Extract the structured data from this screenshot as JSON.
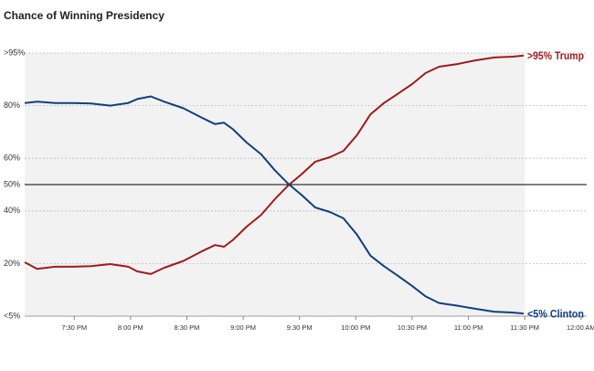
{
  "chart_data": {
    "type": "line",
    "title": "Chance of Winning Presidency",
    "xlim": [
      19.06,
      24.05
    ],
    "ylim": [
      0,
      100
    ],
    "xticks": [
      {
        "value": 19.5,
        "label": "7:30 PM"
      },
      {
        "value": 20,
        "label": "8:00 PM"
      },
      {
        "value": 20.5,
        "label": "8:30 PM"
      },
      {
        "value": 21,
        "label": "9:00 PM"
      },
      {
        "value": 21.5,
        "label": "9:30 PM"
      },
      {
        "value": 22,
        "label": "10:00 PM"
      },
      {
        "value": 22.5,
        "label": "10:30 PM"
      },
      {
        "value": 23,
        "label": "11:00 PM"
      },
      {
        "value": 23.5,
        "label": "11:30 PM"
      },
      {
        "value": 24,
        "label": "12:00 AM"
      }
    ],
    "yticks": [
      {
        "value": 0,
        "label": "<5%"
      },
      {
        "value": 20,
        "label": "20%"
      },
      {
        "value": 40,
        "label": "40%"
      },
      {
        "value": 50,
        "label": "50%"
      },
      {
        "value": 60,
        "label": "60%"
      },
      {
        "value": 80,
        "label": "80%"
      },
      {
        "value": 100,
        "label": ">95%"
      }
    ],
    "grid": true,
    "reference_line": 50,
    "shaded_xlim": [
      19.06,
      23.5
    ],
    "x": [
      19.06,
      19.17,
      19.33,
      19.49,
      19.65,
      19.82,
      19.98,
      20.06,
      20.18,
      20.3,
      20.47,
      20.63,
      20.75,
      20.83,
      20.91,
      21.03,
      21.16,
      21.28,
      21.4,
      21.52,
      21.64,
      21.77,
      21.89,
      22.01,
      22.13,
      22.25,
      22.37,
      22.5,
      22.62,
      22.74,
      22.9,
      23.06,
      23.23,
      23.39,
      23.49
    ],
    "series": [
      {
        "name": ">95% Trump",
        "color": "#9e1c1c",
        "values": [
          20.5,
          18,
          18.8,
          18.8,
          19,
          19.8,
          18.8,
          17,
          16,
          18.4,
          21,
          24.6,
          27,
          26.4,
          29,
          34,
          38.5,
          44.4,
          49.7,
          54,
          58.7,
          60.4,
          62.8,
          68.8,
          76.7,
          81,
          84.4,
          88.2,
          92.4,
          94.8,
          95.8,
          97.2,
          98.3,
          98.6,
          99
        ]
      },
      {
        "name": "<5% Clinton",
        "color": "#123f7f",
        "values": [
          81,
          81.5,
          81,
          81,
          80.8,
          80,
          81,
          82.5,
          83.5,
          81.5,
          79,
          75.5,
          73,
          73.5,
          71,
          66,
          61.5,
          55.5,
          50.3,
          46,
          41.3,
          39.6,
          37.2,
          31,
          23,
          19,
          15.5,
          11.5,
          7.5,
          5,
          4,
          2.8,
          1.7,
          1.4,
          1
        ]
      }
    ]
  }
}
